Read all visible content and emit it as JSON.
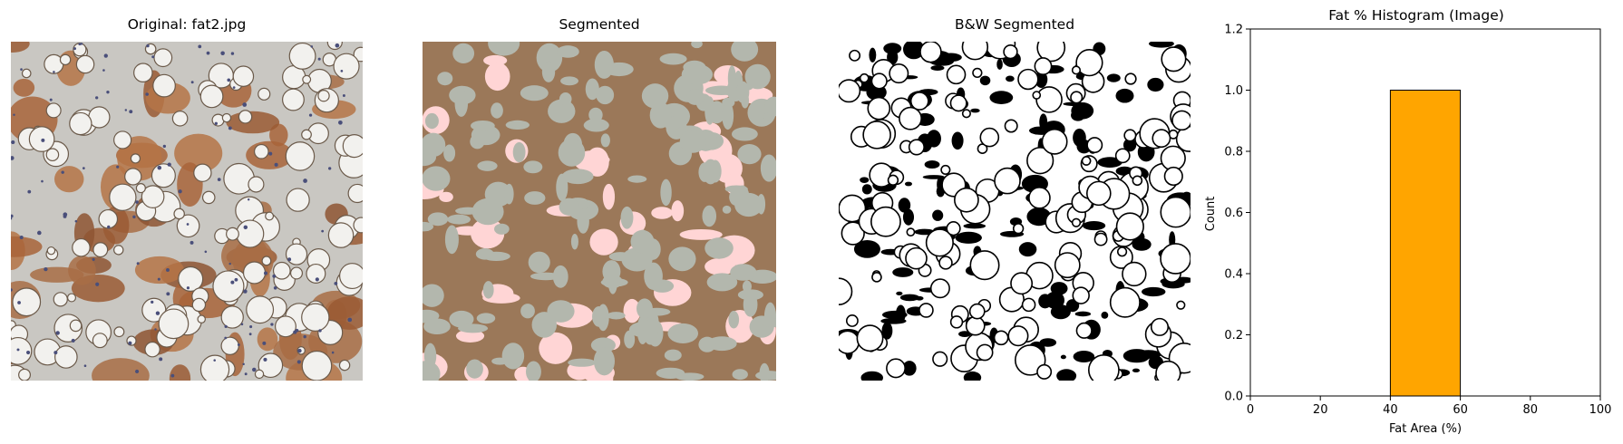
{
  "panels": [
    {
      "title": "Original: fat2.jpg",
      "kind": "photo",
      "description": "brightfield histology image with round fat vacuoles and brown tissue"
    },
    {
      "title": "Segmented",
      "kind": "segmentation",
      "colors": {
        "background": "#b3b7ad",
        "tissue": "#9b7859",
        "highlight": "#ffd5d5"
      }
    },
    {
      "title": "B&W Segmented",
      "kind": "binary",
      "colors": {
        "foreground": "#ffffff",
        "background": "#000000"
      }
    }
  ],
  "chart_data": {
    "type": "bar",
    "title": "Fat % Histogram (Image)",
    "xlabel": "Fat Area (%)",
    "ylabel": "Count",
    "xlim": [
      0,
      100
    ],
    "ylim": [
      0,
      1.2
    ],
    "bins": [
      [
        40,
        60
      ]
    ],
    "values": [
      1.0
    ],
    "xticks": [
      "0",
      "20",
      "40",
      "60",
      "80",
      "100"
    ],
    "yticks": [
      "0.0",
      "0.2",
      "0.4",
      "0.6",
      "0.8",
      "1.0",
      "1.2"
    ],
    "bar_color": "#ffa500",
    "edge_color": "#000000",
    "grid": false
  }
}
